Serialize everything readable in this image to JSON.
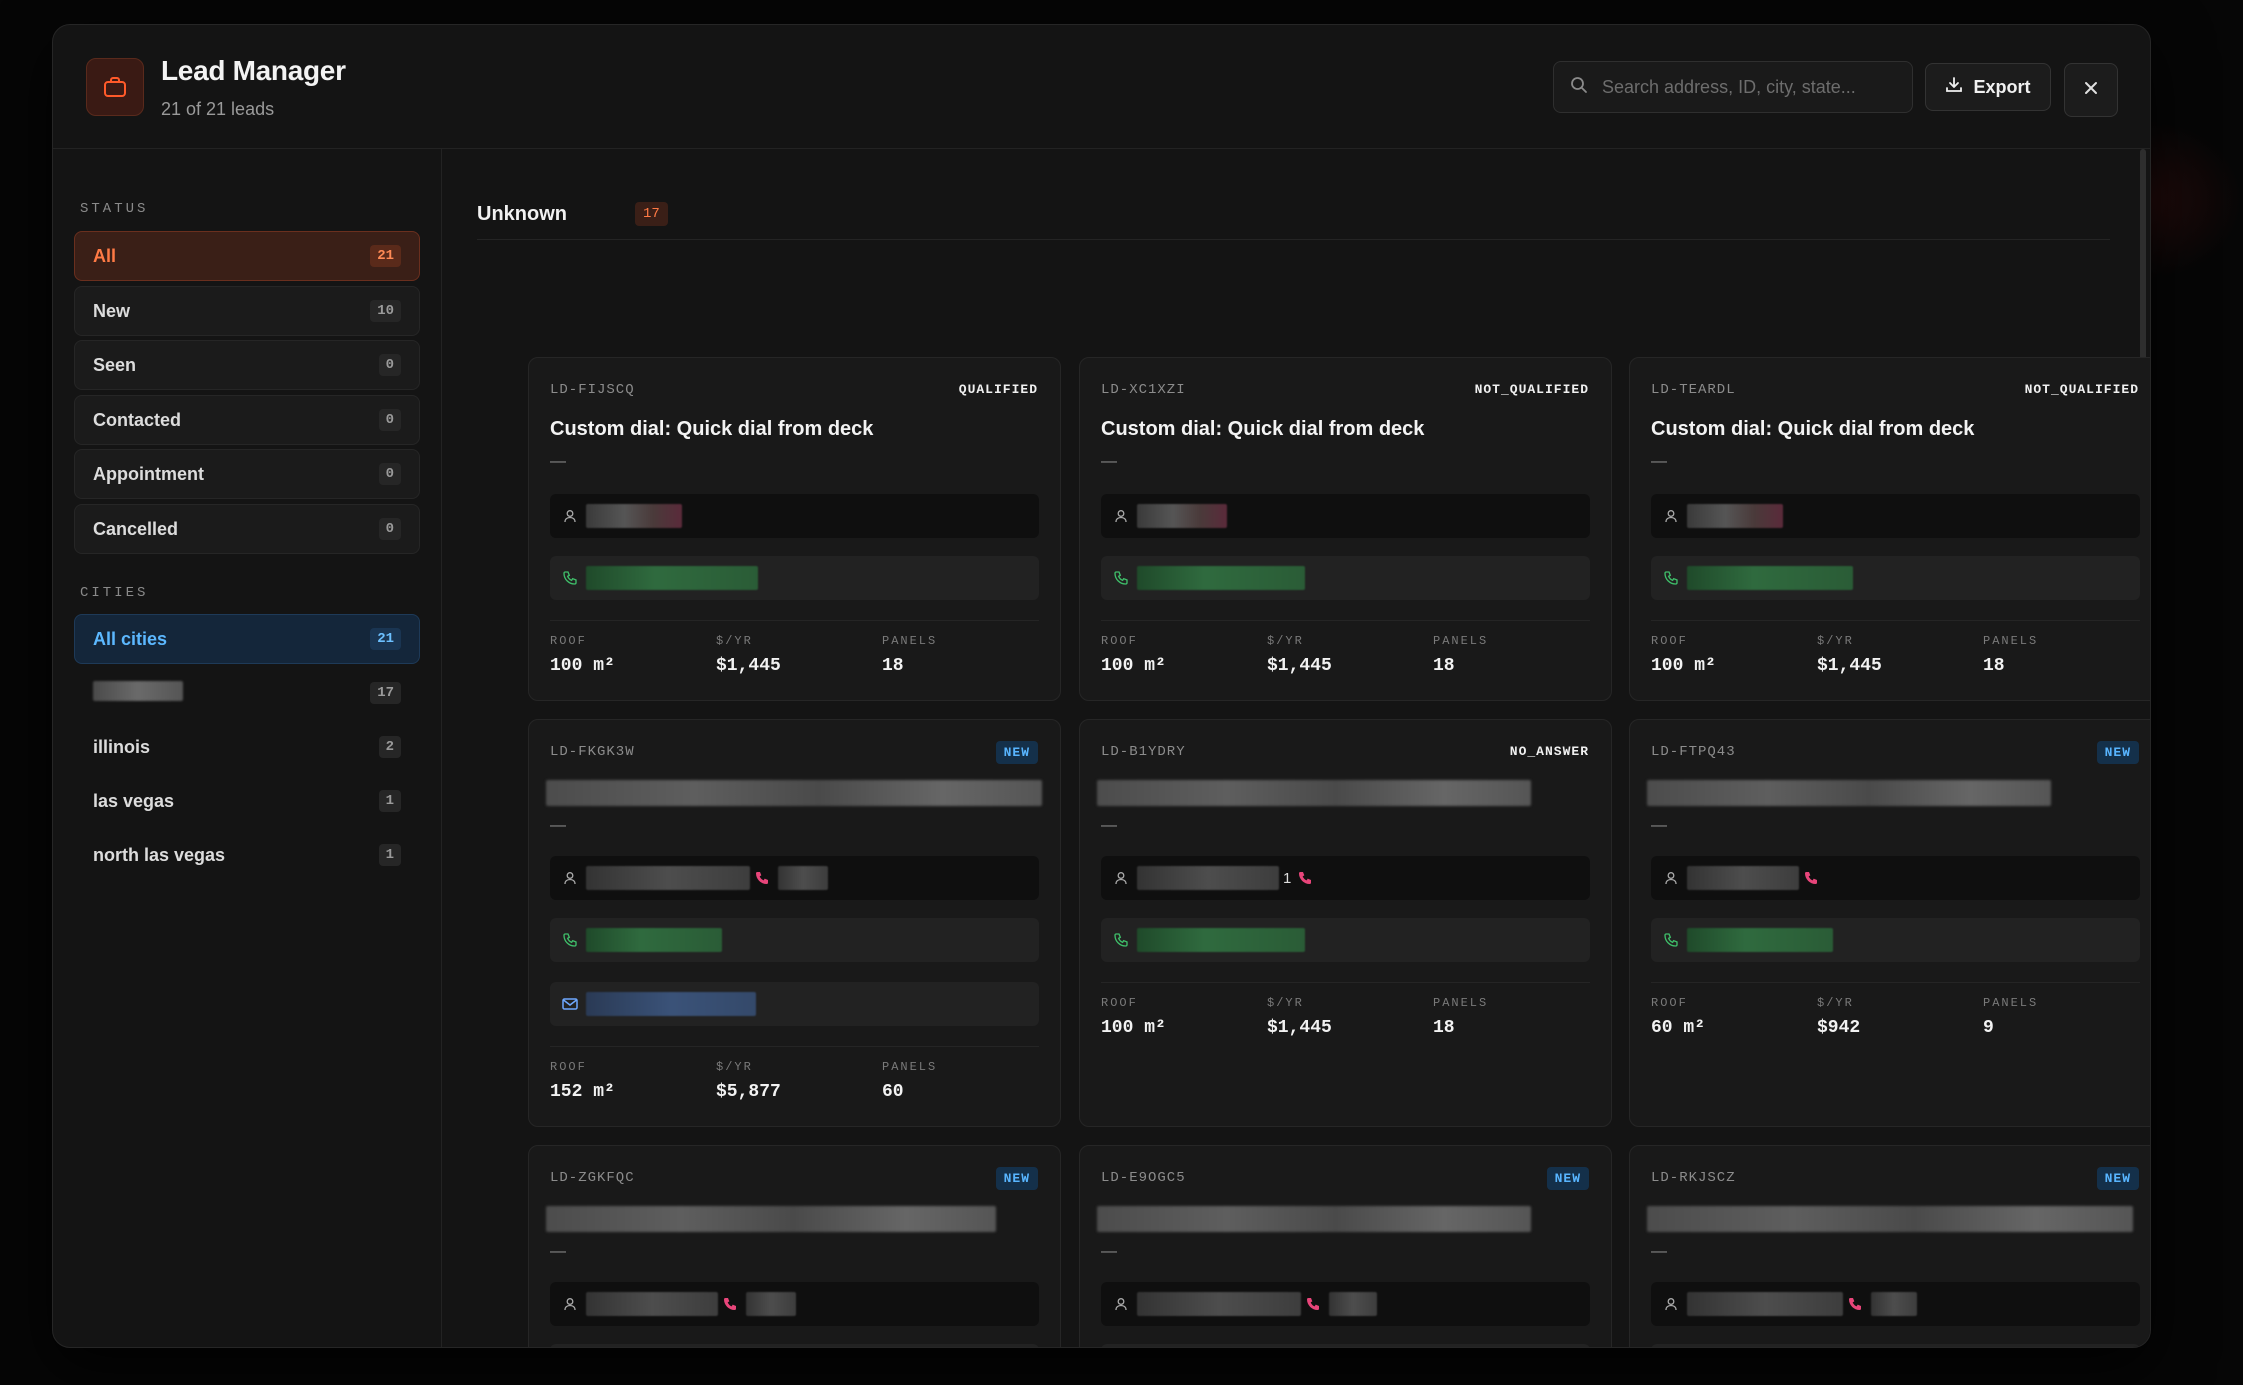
{
  "header": {
    "title": "Lead Manager",
    "subtitle": "21 of 21 leads",
    "search_placeholder": "Search address, ID, city, state...",
    "export_label": "Export"
  },
  "sidebar": {
    "status_label": "STATUS",
    "status_items": [
      {
        "label": "All",
        "count": "21"
      },
      {
        "label": "New",
        "count": "10"
      },
      {
        "label": "Seen",
        "count": "0"
      },
      {
        "label": "Contacted",
        "count": "0"
      },
      {
        "label": "Appointment",
        "count": "0"
      },
      {
        "label": "Cancelled",
        "count": "0"
      }
    ],
    "cities_label": "CITIES",
    "city_items": [
      {
        "label": "All cities",
        "count": "21"
      },
      {
        "label": "",
        "count": "17"
      },
      {
        "label": "illinois",
        "count": "2"
      },
      {
        "label": "las vegas",
        "count": "1"
      },
      {
        "label": "north las vegas",
        "count": "1"
      }
    ]
  },
  "content": {
    "group_title": "Unknown",
    "group_count": "17",
    "stat_labels": {
      "roof": "ROOF",
      "per_year": "$/YR",
      "panels": "PANELS"
    },
    "cards": [
      {
        "id": "LD-FIJSCQ",
        "status": "QUALIFIED",
        "title": "Custom dial: Quick dial from deck",
        "dash": "—",
        "roof": "100 m²",
        "per_year": "$1,445",
        "panels": "18"
      },
      {
        "id": "LD-XC1XZI",
        "status": "NOT_QUALIFIED",
        "title": "Custom dial: Quick dial from deck",
        "dash": "—",
        "roof": "100 m²",
        "per_year": "$1,445",
        "panels": "18"
      },
      {
        "id": "LD-TEARDL",
        "status": "NOT_QUALIFIED",
        "title": "Custom dial: Quick dial from deck",
        "dash": "—",
        "roof": "100 m²",
        "per_year": "$1,445",
        "panels": "18"
      },
      {
        "id": "LD-FKGK3W",
        "status": "NEW",
        "title": "",
        "dash": "—",
        "roof": "152 m²",
        "per_year": "$5,877",
        "panels": "60"
      },
      {
        "id": "LD-B1YDRY",
        "status": "NO_ANSWER",
        "title": "",
        "dash": "—",
        "inline_num": "1",
        "roof": "100 m²",
        "per_year": "$1,445",
        "panels": "18"
      },
      {
        "id": "LD-FTPQ43",
        "status": "NEW",
        "title": "",
        "dash": "—",
        "roof": "60 m²",
        "per_year": "$942",
        "panels": "9"
      },
      {
        "id": "LD-ZGKFQC",
        "status": "NEW",
        "title": "",
        "dash": "—"
      },
      {
        "id": "LD-E9OGC5",
        "status": "NEW",
        "title": "",
        "dash": "—"
      },
      {
        "id": "LD-RKJSCZ",
        "status": "NEW",
        "title": "",
        "dash": "—"
      }
    ]
  },
  "colors": {
    "accent_orange": "#ff7a45",
    "accent_blue": "#58b5ff",
    "phone_green": "#3fbf6a",
    "phone_pink": "#e8457a"
  },
  "icons": [
    "briefcase-icon",
    "search-icon",
    "download-icon",
    "close-icon",
    "user-icon",
    "phone-icon",
    "mail-icon"
  ]
}
